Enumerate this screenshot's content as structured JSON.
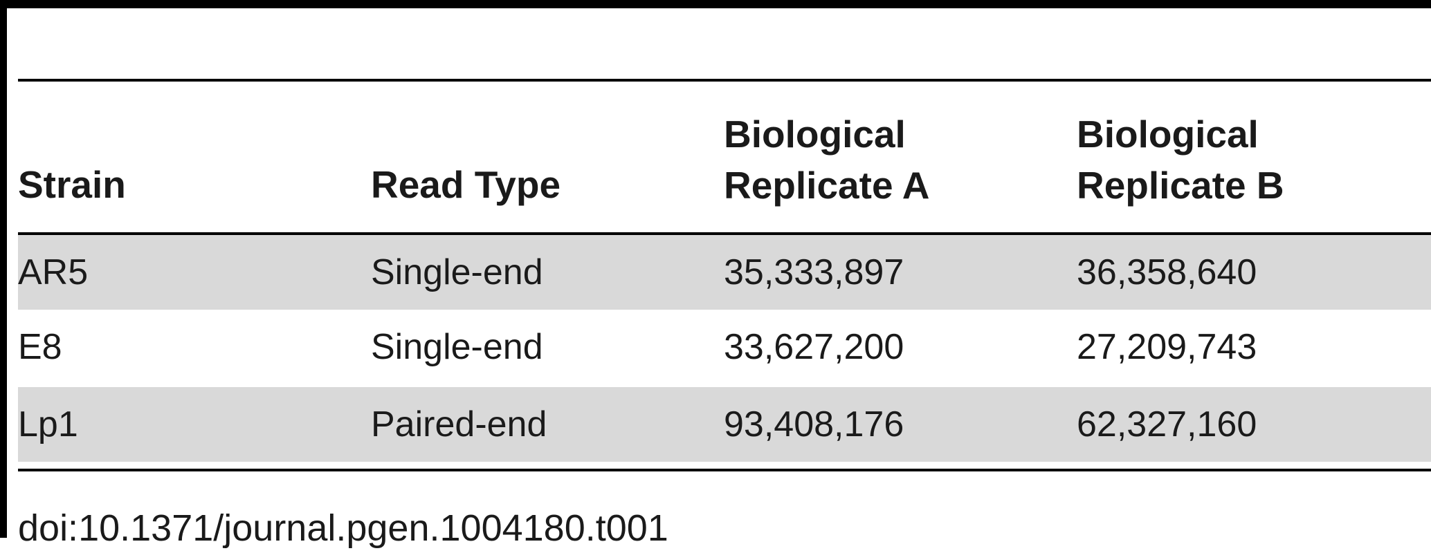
{
  "table": {
    "headers": [
      "Strain",
      "Read Type",
      "Biological\nReplicate A",
      "Biological\nReplicate B"
    ],
    "rows": [
      [
        "AR5",
        "Single-end",
        "35,333,897",
        "36,358,640"
      ],
      [
        "E8",
        "Single-end",
        "33,627,200",
        "27,209,743"
      ],
      [
        "Lp1",
        "Paired-end",
        "93,408,176",
        "62,327,160"
      ]
    ],
    "shaded_rows": [
      0,
      2
    ],
    "shade_color": "#d9d9d9"
  },
  "footer": {
    "doi": "doi:10.1371/journal.pgen.1004180.t001"
  }
}
